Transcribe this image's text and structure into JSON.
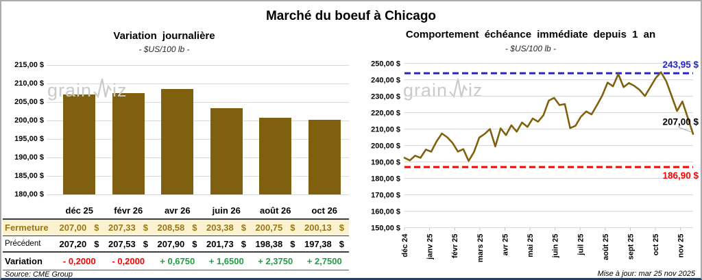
{
  "title": "Marché du boeuf à Chicago",
  "footer": {
    "source": "Source: CME Group",
    "updated": "Mise à jour: mar 25 nov 2025"
  },
  "watermark": {
    "prefix": "grain",
    "suffix": "iz"
  },
  "colors": {
    "gold": "#7F600E",
    "positive": "#1F9E40",
    "negative": "#FE0000",
    "close_text": "#9A7718",
    "close_bg": "#FBF2D0",
    "ref_blue": "#2525C4",
    "ref_red": "#FE0000"
  },
  "chart_data": [
    {
      "type": "bar",
      "title": "Variation journalière",
      "subtitle": "- $US/100 lb -",
      "categories": [
        "déc 25",
        "févr 26",
        "avr 26",
        "juin 26",
        "août 26",
        "oct 26"
      ],
      "values": [
        207.0,
        207.33,
        208.58,
        203.38,
        200.75,
        200.13
      ],
      "ylim": [
        180,
        215
      ],
      "y_tick_labels": [
        "215,00 $",
        "210,00 $",
        "205,00 $",
        "200,00 $",
        "195,00 $",
        "190,00 $",
        "185,00 $",
        "180,00 $"
      ],
      "bar_color": "#7F600E",
      "grid": true
    },
    {
      "type": "line",
      "title": "Comportement échéance immédiate depuis 1 an",
      "subtitle": "- $US/100 lb -",
      "x_tick_labels": [
        "déc 24",
        "janv 25",
        "févr 25",
        "mars 25",
        "avr 25",
        "mai 25",
        "juin 25",
        "juil 25",
        "août 25",
        "sept 25",
        "oct 25",
        "nov 25"
      ],
      "months_spanned": 11.5,
      "ylim": [
        150,
        250
      ],
      "y_tick_labels": [
        "250,00 $",
        "240,00 $",
        "230,00 $",
        "220,00 $",
        "210,00 $",
        "200,00 $",
        "190,00 $",
        "180,00 $",
        "170,00 $",
        "160,00 $",
        "150,00 $"
      ],
      "values": [
        192.5,
        190.9,
        193.8,
        192.5,
        197.5,
        196.2,
        202.5,
        207.3,
        205.0,
        201.5,
        196.3,
        197.8,
        190.6,
        196.0,
        204.8,
        207.0,
        210.0,
        199.4,
        210.4,
        206.3,
        212.3,
        208.4,
        214.0,
        211.3,
        216.4,
        214.5,
        218.4,
        227.3,
        229.0,
        224.6,
        225.2,
        210.6,
        212.0,
        217.5,
        220.7,
        218.9,
        224.5,
        230.4,
        238.3,
        236.0,
        243.4,
        235.5,
        238.0,
        236.3,
        233.8,
        230.1,
        235.5,
        241.0,
        244.6,
        239.0,
        230.0,
        221.0,
        226.8,
        216.9,
        207.0
      ],
      "line_color": "#7F600E",
      "ref_lines": [
        {
          "value": 243.95,
          "label": "243,95 $",
          "color": "#2525C4",
          "label_position": "above"
        },
        {
          "value": 186.9,
          "label": "186,90 $",
          "color": "#FE0000",
          "label_position": "below"
        }
      ],
      "end_label": "207,00 $",
      "grid": true,
      "legend": false
    }
  ],
  "table": {
    "header": [
      "déc 25",
      "févr 26",
      "avr 26",
      "juin 26",
      "août 26",
      "oct 26"
    ],
    "rows": [
      {
        "label": "Fermeture",
        "kind": "close",
        "values": [
          "207,00 $",
          "207,33 $",
          "208,58 $",
          "203,38 $",
          "200,75 $",
          "200,13 $"
        ]
      },
      {
        "label": "Précédent",
        "kind": "previous",
        "values": [
          "207,20 $",
          "207,53 $",
          "207,90 $",
          "201,73 $",
          "198,38 $",
          "197,38 $"
        ]
      },
      {
        "label": "Variation",
        "kind": "variation",
        "values": [
          "- 0,2000",
          "- 0,2000",
          "+ 0,6750",
          "+ 1,6500",
          "+ 2,3750",
          "+ 2,7500"
        ]
      }
    ]
  }
}
